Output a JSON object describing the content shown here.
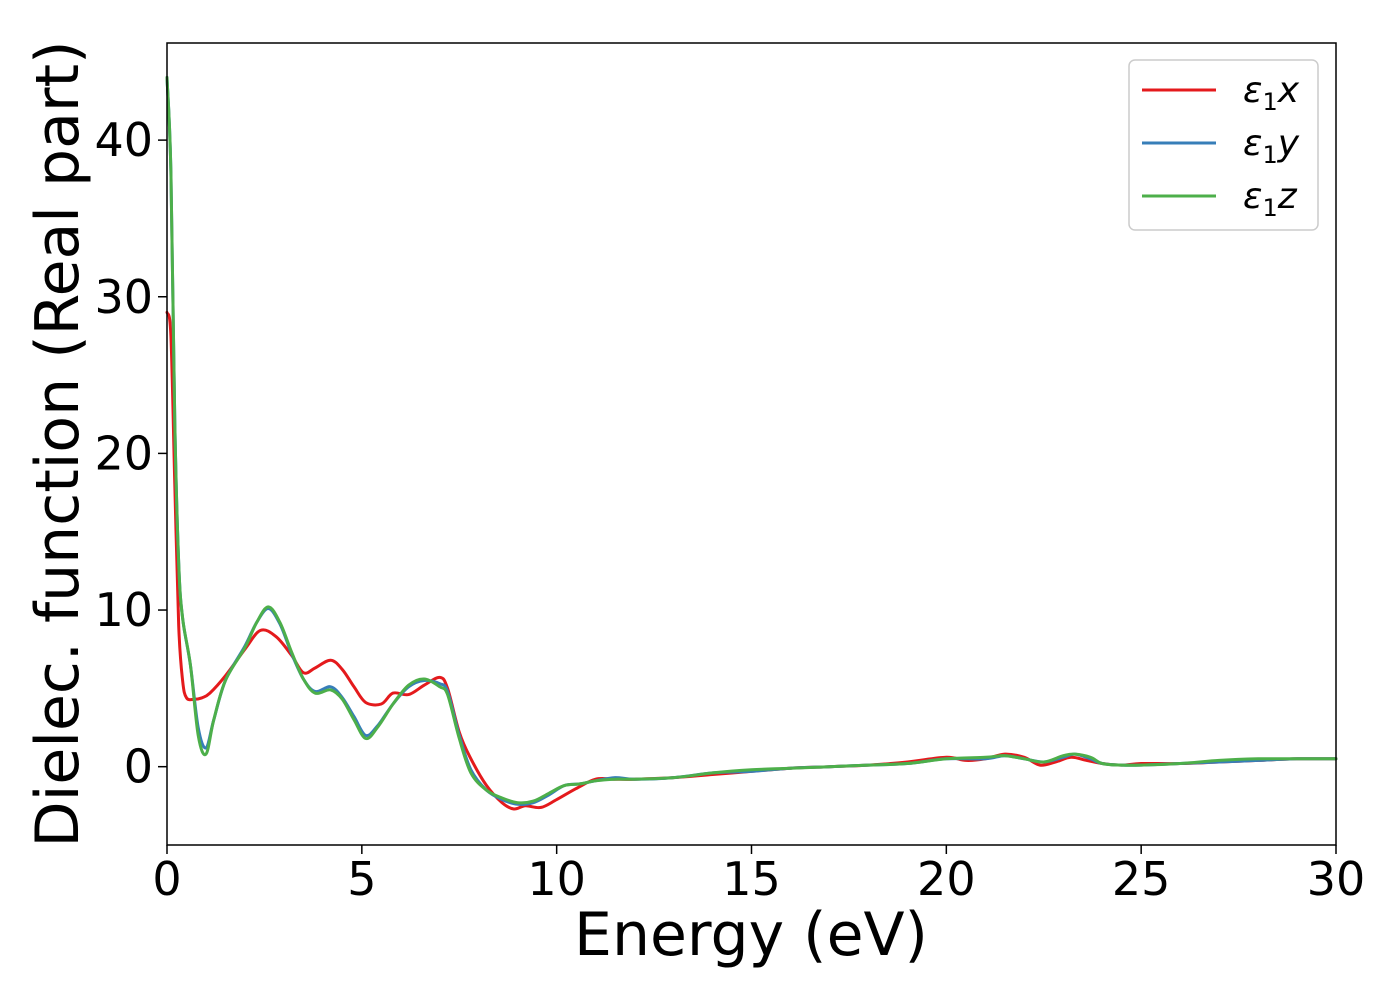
{
  "chart_data": {
    "type": "line",
    "title": "",
    "xlabel": "Energy (eV)",
    "ylabel": "Dielec. function (Real part)",
    "xlim": [
      0,
      30
    ],
    "ylim": [
      -5,
      46.2
    ],
    "xticks": [
      0,
      5,
      10,
      15,
      20,
      25,
      30
    ],
    "yticks": [
      0,
      10,
      20,
      30,
      40
    ],
    "xtick_labels": [
      "0",
      "5",
      "10",
      "15",
      "20",
      "25",
      "30"
    ],
    "ytick_labels": [
      "0",
      "10",
      "20",
      "30",
      "40"
    ],
    "grid": false,
    "legend_position": "top-right",
    "series": [
      {
        "name_symbol": "ε",
        "name_sub": "1",
        "name_axis": "x",
        "color": "#e41a1c",
        "points": [
          [
            0,
            29
          ],
          [
            0.1,
            27.5
          ],
          [
            0.2,
            18
          ],
          [
            0.3,
            9
          ],
          [
            0.4,
            5.5
          ],
          [
            0.5,
            4.4
          ],
          [
            0.7,
            4.3
          ],
          [
            0.9,
            4.4
          ],
          [
            1.1,
            4.7
          ],
          [
            1.5,
            5.8
          ],
          [
            2.0,
            7.5
          ],
          [
            2.4,
            8.7
          ],
          [
            2.8,
            8.3
          ],
          [
            3.2,
            7.1
          ],
          [
            3.5,
            6.0
          ],
          [
            3.8,
            6.3
          ],
          [
            4.2,
            6.8
          ],
          [
            4.5,
            6.2
          ],
          [
            4.8,
            5.1
          ],
          [
            5.1,
            4.1
          ],
          [
            5.5,
            4.0
          ],
          [
            5.8,
            4.7
          ],
          [
            6.2,
            4.6
          ],
          [
            6.6,
            5.2
          ],
          [
            7.0,
            5.7
          ],
          [
            7.2,
            5.0
          ],
          [
            7.5,
            2.2
          ],
          [
            7.8,
            0.5
          ],
          [
            8.2,
            -1.2
          ],
          [
            8.6,
            -2.3
          ],
          [
            8.9,
            -2.7
          ],
          [
            9.2,
            -2.5
          ],
          [
            9.6,
            -2.6
          ],
          [
            10.0,
            -2.1
          ],
          [
            10.5,
            -1.4
          ],
          [
            11.0,
            -0.8
          ],
          [
            11.5,
            -0.8
          ],
          [
            12.0,
            -0.8
          ],
          [
            13.0,
            -0.7
          ],
          [
            14.0,
            -0.5
          ],
          [
            15.0,
            -0.3
          ],
          [
            16.0,
            -0.1
          ],
          [
            17.0,
            0.0
          ],
          [
            18.0,
            0.1
          ],
          [
            19.0,
            0.3
          ],
          [
            20.0,
            0.6
          ],
          [
            20.5,
            0.4
          ],
          [
            21.0,
            0.5
          ],
          [
            21.5,
            0.8
          ],
          [
            22.0,
            0.6
          ],
          [
            22.4,
            0.1
          ],
          [
            22.8,
            0.3
          ],
          [
            23.2,
            0.6
          ],
          [
            23.6,
            0.4
          ],
          [
            24.0,
            0.2
          ],
          [
            24.5,
            0.1
          ],
          [
            25.0,
            0.2
          ],
          [
            26.0,
            0.2
          ],
          [
            27.0,
            0.3
          ],
          [
            28.0,
            0.4
          ],
          [
            29.0,
            0.5
          ],
          [
            30.0,
            0.5
          ]
        ]
      },
      {
        "name_symbol": "ε",
        "name_sub": "1",
        "name_axis": "y",
        "color": "#377eb8",
        "points": [
          [
            0,
            44
          ],
          [
            0.1,
            38
          ],
          [
            0.2,
            22
          ],
          [
            0.3,
            13
          ],
          [
            0.4,
            9.5
          ],
          [
            0.6,
            6.5
          ],
          [
            0.8,
            2.5
          ],
          [
            1.0,
            1.2
          ],
          [
            1.2,
            3.0
          ],
          [
            1.5,
            5.5
          ],
          [
            2.0,
            7.7
          ],
          [
            2.3,
            9.2
          ],
          [
            2.6,
            10.1
          ],
          [
            2.9,
            9.1
          ],
          [
            3.2,
            7.2
          ],
          [
            3.5,
            5.6
          ],
          [
            3.8,
            4.8
          ],
          [
            4.2,
            5.1
          ],
          [
            4.5,
            4.4
          ],
          [
            4.8,
            3.2
          ],
          [
            5.1,
            2.0
          ],
          [
            5.4,
            2.6
          ],
          [
            5.8,
            4.0
          ],
          [
            6.2,
            5.1
          ],
          [
            6.6,
            5.5
          ],
          [
            7.0,
            5.3
          ],
          [
            7.2,
            4.8
          ],
          [
            7.5,
            2.0
          ],
          [
            7.8,
            -0.2
          ],
          [
            8.2,
            -1.5
          ],
          [
            8.6,
            -2.1
          ],
          [
            9.0,
            -2.4
          ],
          [
            9.4,
            -2.3
          ],
          [
            9.8,
            -1.8
          ],
          [
            10.2,
            -1.2
          ],
          [
            10.6,
            -1.1
          ],
          [
            11.0,
            -0.9
          ],
          [
            11.5,
            -0.7
          ],
          [
            12.0,
            -0.8
          ],
          [
            13.0,
            -0.7
          ],
          [
            14.0,
            -0.4
          ],
          [
            15.0,
            -0.3
          ],
          [
            16.0,
            -0.1
          ],
          [
            17.0,
            0.0
          ],
          [
            18.0,
            0.1
          ],
          [
            19.0,
            0.2
          ],
          [
            20.0,
            0.5
          ],
          [
            21.0,
            0.5
          ],
          [
            21.5,
            0.7
          ],
          [
            22.0,
            0.5
          ],
          [
            22.5,
            0.3
          ],
          [
            23.0,
            0.6
          ],
          [
            23.3,
            0.8
          ],
          [
            23.7,
            0.5
          ],
          [
            24.0,
            0.2
          ],
          [
            24.5,
            0.1
          ],
          [
            25.0,
            0.1
          ],
          [
            26.0,
            0.2
          ],
          [
            27.0,
            0.3
          ],
          [
            28.0,
            0.4
          ],
          [
            29.0,
            0.5
          ],
          [
            30.0,
            0.5
          ]
        ]
      },
      {
        "name_symbol": "ε",
        "name_sub": "1",
        "name_axis": "z",
        "color": "#4daf4a",
        "points": [
          [
            0,
            44
          ],
          [
            0.1,
            38
          ],
          [
            0.2,
            22
          ],
          [
            0.3,
            13
          ],
          [
            0.4,
            9.5
          ],
          [
            0.6,
            6.5
          ],
          [
            0.8,
            2.0
          ],
          [
            1.0,
            0.8
          ],
          [
            1.2,
            3.0
          ],
          [
            1.5,
            5.5
          ],
          [
            2.0,
            7.6
          ],
          [
            2.3,
            9.2
          ],
          [
            2.6,
            10.2
          ],
          [
            2.9,
            9.2
          ],
          [
            3.2,
            7.3
          ],
          [
            3.5,
            5.6
          ],
          [
            3.8,
            4.7
          ],
          [
            4.2,
            4.9
          ],
          [
            4.5,
            4.3
          ],
          [
            4.8,
            3.0
          ],
          [
            5.1,
            1.8
          ],
          [
            5.4,
            2.5
          ],
          [
            5.8,
            4.0
          ],
          [
            6.2,
            5.2
          ],
          [
            6.6,
            5.6
          ],
          [
            7.0,
            5.1
          ],
          [
            7.2,
            4.6
          ],
          [
            7.5,
            1.8
          ],
          [
            7.8,
            -0.4
          ],
          [
            8.2,
            -1.5
          ],
          [
            8.6,
            -2.0
          ],
          [
            9.0,
            -2.3
          ],
          [
            9.4,
            -2.2
          ],
          [
            9.8,
            -1.7
          ],
          [
            10.2,
            -1.2
          ],
          [
            10.6,
            -1.1
          ],
          [
            11.0,
            -0.9
          ],
          [
            11.5,
            -0.8
          ],
          [
            12.0,
            -0.8
          ],
          [
            13.0,
            -0.7
          ],
          [
            14.0,
            -0.4
          ],
          [
            15.0,
            -0.2
          ],
          [
            16.0,
            -0.1
          ],
          [
            17.0,
            0.0
          ],
          [
            18.0,
            0.1
          ],
          [
            19.0,
            0.2
          ],
          [
            20.0,
            0.5
          ],
          [
            21.0,
            0.6
          ],
          [
            21.5,
            0.7
          ],
          [
            22.0,
            0.5
          ],
          [
            22.5,
            0.3
          ],
          [
            23.0,
            0.7
          ],
          [
            23.3,
            0.8
          ],
          [
            23.7,
            0.6
          ],
          [
            24.0,
            0.2
          ],
          [
            24.5,
            0.1
          ],
          [
            25.0,
            0.1
          ],
          [
            26.0,
            0.2
          ],
          [
            27.0,
            0.4
          ],
          [
            28.0,
            0.5
          ],
          [
            29.0,
            0.5
          ],
          [
            30.0,
            0.5
          ]
        ]
      }
    ]
  }
}
